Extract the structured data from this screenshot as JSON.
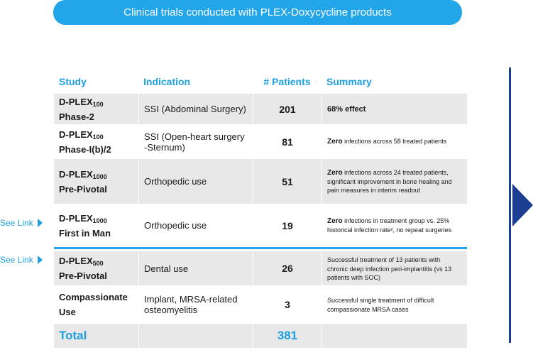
{
  "banner": {
    "title": "Clinical trials conducted with PLEX-Doxycycline products"
  },
  "links": {
    "see_link": "See Link"
  },
  "table": {
    "headers": {
      "study": "Study",
      "indication": "Indication",
      "patients": "# Patients",
      "summary": "Summary"
    },
    "rows": [
      {
        "study_name": "D-PLEX",
        "study_sub": "100",
        "study_phase": "Phase-2",
        "indication": "SSI (Abdominal Surgery)",
        "patients": "201",
        "summary_bold": "68% effect",
        "summary_rest": ""
      },
      {
        "study_name": "D-PLEX",
        "study_sub": "100",
        "study_phase": "Phase-I(b)/2",
        "indication": "SSI (Open-heart surgery -Sternum)",
        "patients": "81",
        "summary_bold": "Zero",
        "summary_rest": " infections across 58 treated patients"
      },
      {
        "study_name": "D-PLEX",
        "study_sub": "1000",
        "study_phase": "Pre-Pivotal",
        "indication": "Orthopedic use",
        "patients": "51",
        "summary_bold": "Zero",
        "summary_rest": " infections across 24 treated patients, significant improvement in bone healing and pain measures in interim readout"
      },
      {
        "study_name": "D-PLEX",
        "study_sub": "1000",
        "study_phase": "First in Man",
        "indication": "Orthopedic use",
        "patients": "19",
        "summary_bold": "Zero",
        "summary_rest": " infections in treatment group vs. 25% historical infection rate², no repeat surgeries"
      },
      {
        "study_name": "D-PLEX",
        "study_sub": "500",
        "study_phase": "Pre-Pivotal",
        "indication": "Dental use",
        "patients": "26",
        "summary_bold": "",
        "summary_rest": "Successful treatment of 13 patients with chronic deep infection peri-implantitis (vs 13 patients with SOC)"
      },
      {
        "study_name": "Compassionate",
        "study_sub": "",
        "study_phase": "Use",
        "indication": "Implant, MRSA-related osteomyelitis",
        "patients": "3",
        "summary_bold": "",
        "summary_rest": "Successful single treatment of difficult compassionate MRSA cases"
      }
    ],
    "total": {
      "label": "Total",
      "patients": "381"
    }
  },
  "colors": {
    "accent": "#23a5ea",
    "navy": "#1c3f94",
    "row_gray": "#e8e8e8"
  }
}
